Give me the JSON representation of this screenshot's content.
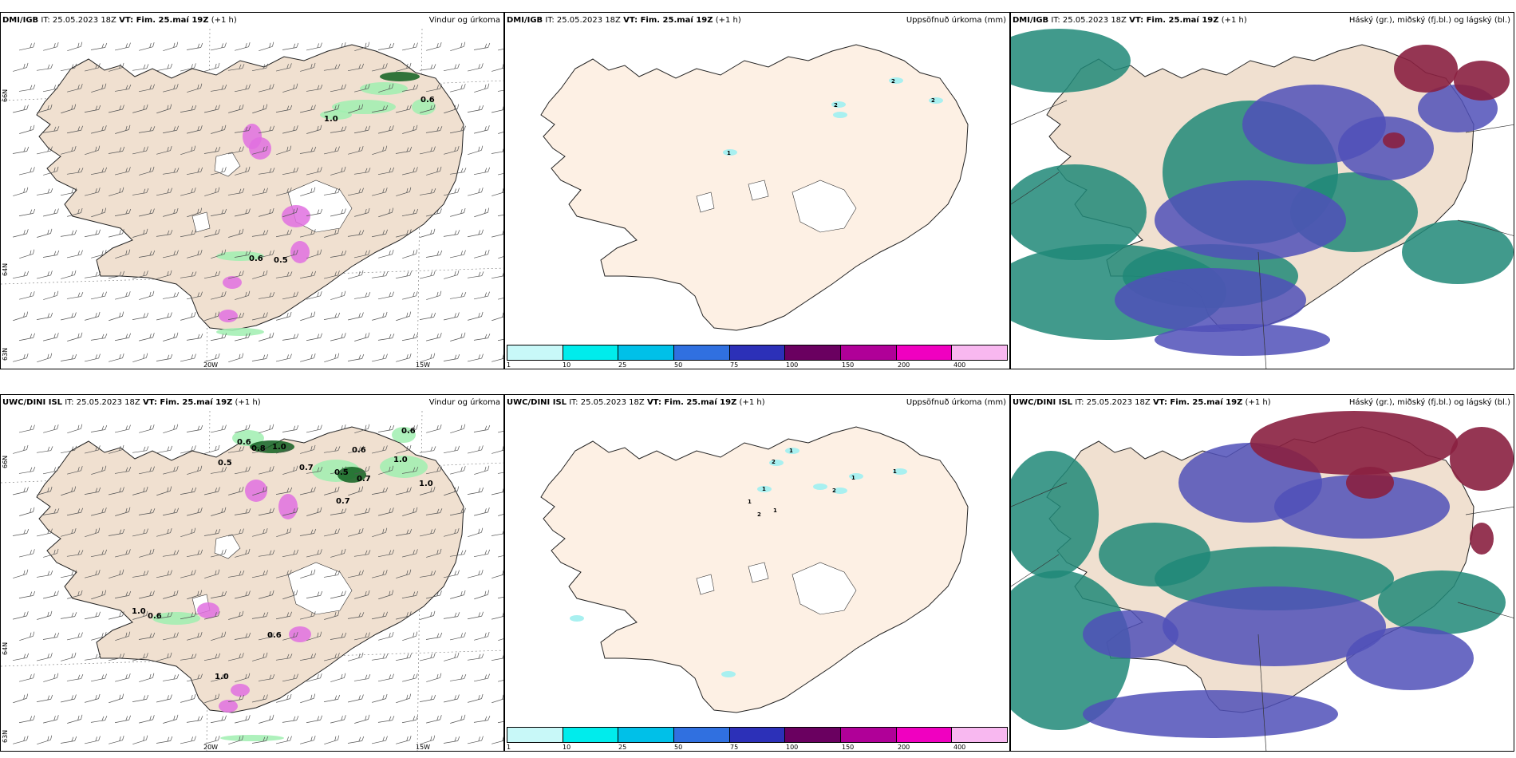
{
  "panels": [
    {
      "id": "p1",
      "source": "DMI/IGB",
      "it": "IT: 25.05.2023 18Z",
      "vt": "VT: Fim. 25.maí 19Z",
      "lead": "(+1 h)",
      "title": "Vindur og úrkoma",
      "lon_labels": [
        "20W",
        "15W"
      ],
      "lat_labels": [
        "66N",
        "64N",
        "63N"
      ],
      "values": [
        "1.0",
        "0.6",
        "0.5",
        "0.6"
      ]
    },
    {
      "id": "p2",
      "source": "DMI/IGB",
      "it": "IT: 25.05.2023 18Z",
      "vt": "VT: Fim. 25.maí 19Z",
      "lead": "(+1 h)",
      "title": "Uppsöfnuð úrkoma (mm)",
      "values": [
        "2",
        "2",
        "2",
        "1"
      ]
    },
    {
      "id": "p3",
      "source": "DMI/IGB",
      "it": "IT: 25.05.2023 18Z",
      "vt": "VT: Fim. 25.maí 19Z",
      "lead": "(+1 h)",
      "title": "Háský (gr.), miðský (fj.bl.) og lágský (bl.)"
    },
    {
      "id": "p4",
      "source": "UWC/DINI ISL",
      "it": "IT: 25.05.2023 18Z",
      "vt": "VT: Fim. 25.maí 19Z",
      "lead": "(+1 h)",
      "title": "Vindur og úrkoma",
      "lon_labels": [
        "20W",
        "15W"
      ],
      "lat_labels": [
        "66N",
        "64N",
        "63N"
      ],
      "values": [
        "0.6",
        "0.8",
        "1.0",
        "0.5",
        "0.7",
        "0.6",
        "0.5",
        "0.7",
        "0.7",
        "1.0",
        "0.6",
        "1.0",
        "0.6",
        "0.6",
        "1.0",
        "1.0"
      ]
    },
    {
      "id": "p5",
      "source": "UWC/DINI ISL",
      "it": "IT: 25.05.2023 18Z",
      "vt": "VT: Fim. 25.maí 19Z",
      "lead": "(+1 h)",
      "title": "Uppsöfnuð úrkoma (mm)",
      "values": [
        "1",
        "2",
        "1",
        "1",
        "2",
        "1",
        "1",
        "2",
        "1"
      ]
    },
    {
      "id": "p6",
      "source": "UWC/DINI ISL",
      "it": "IT: 25.05.2023 18Z",
      "vt": "VT: Fim. 25.maí 19Z",
      "lead": "(+1 h)",
      "title": "Háský (gr.), miðský (fj.bl.) og lágský (bl.)"
    }
  ],
  "colorbar": {
    "ticks": [
      "1",
      "10",
      "25",
      "50",
      "75",
      "100",
      "150",
      "200",
      "400"
    ],
    "colors": [
      "#c8f8f8",
      "#00ecec",
      "#00c0e8",
      "#3070e0",
      "#2c30b8",
      "#6a0060",
      "#b00098",
      "#f000c0",
      "#f8b8f0"
    ]
  },
  "colors": {
    "land": "#f0e0d0",
    "land_light": "#fdf0e4",
    "precip_green": "#a0eeb0",
    "precip_dark": "#106020",
    "precip_pink": "#e070e0",
    "cloud_high": "#8a2040",
    "cloud_mid": "#5050b8",
    "cloud_low": "#208878"
  }
}
